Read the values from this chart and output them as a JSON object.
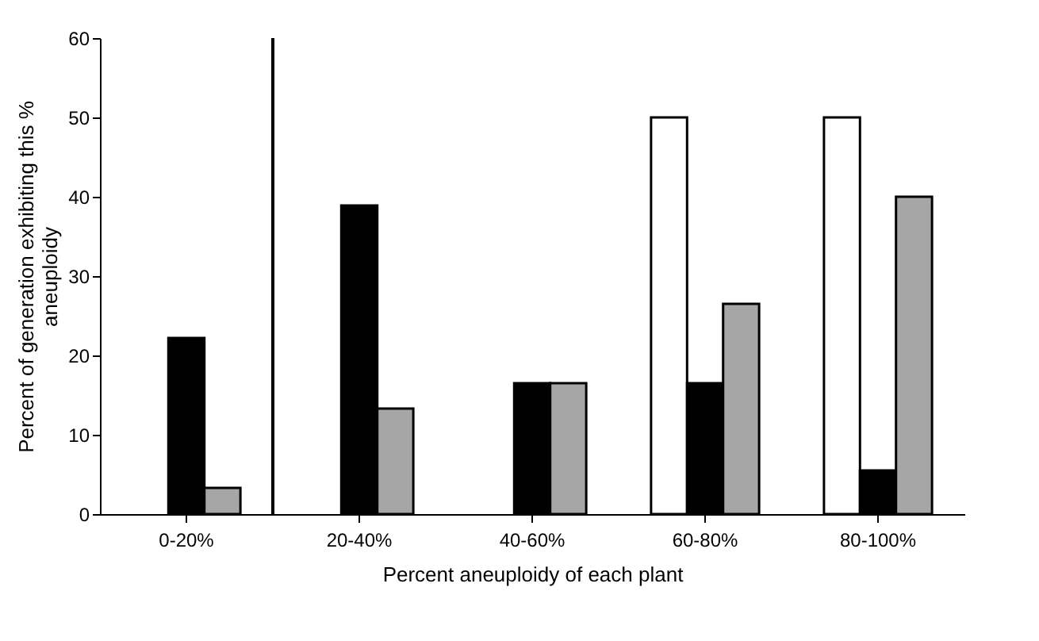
{
  "chart_data": {
    "type": "bar",
    "xlabel": "Percent aneuploidy of each plant",
    "ylabel": "Percent of generation exhibiting this % aneuploidy",
    "categories": [
      "0-20%",
      "20-40%",
      "40-60%",
      "60-80%",
      "80-100%"
    ],
    "series": [
      {
        "color": "#ffffff",
        "values": [
          null,
          null,
          null,
          50,
          50
        ]
      },
      {
        "color": "#000000",
        "values": [
          22.2,
          38.9,
          16.5,
          16.5,
          5.5
        ]
      },
      {
        "color": "#a6a6a6",
        "values": [
          3.3,
          13.3,
          16.5,
          26.5,
          40
        ]
      }
    ],
    "ylim": [
      0,
      60
    ],
    "yticks": [
      0,
      10,
      20,
      30,
      40,
      50,
      60
    ],
    "grid": false,
    "legend": false
  }
}
